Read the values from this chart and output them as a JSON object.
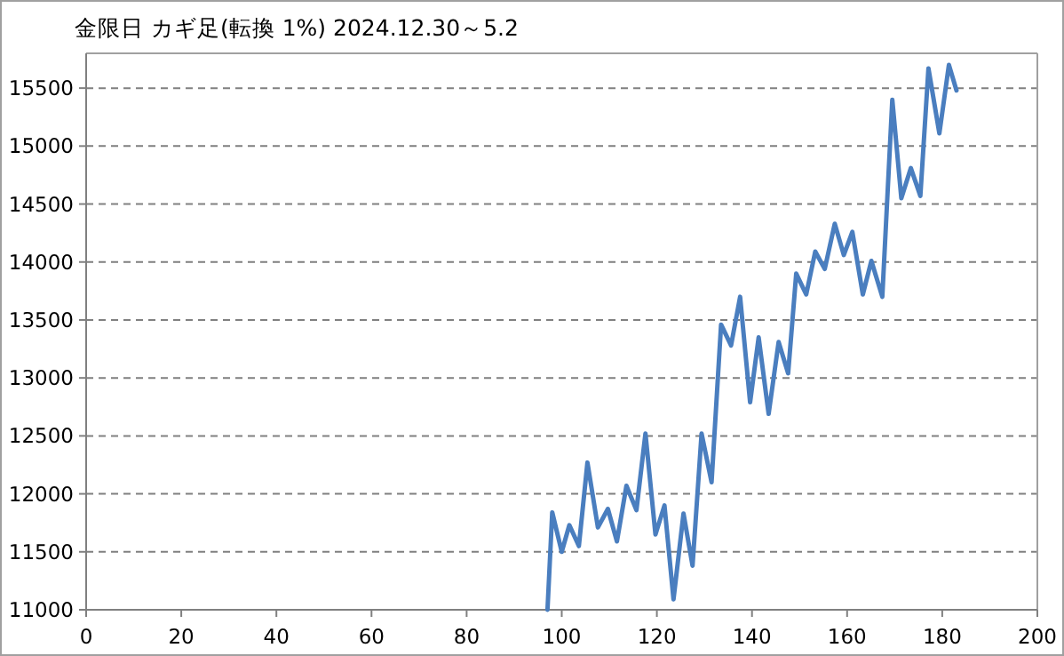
{
  "chart_data": {
    "type": "line",
    "title": "金限日  カギ足(転換 1%)   2024.12.30～5.2",
    "x": [
      97,
      98,
      100,
      101.6,
      103.6,
      105.4,
      107.6,
      109.7,
      111.6,
      113.6,
      115.7,
      117.6,
      119.7,
      121.6,
      123.5,
      125.6,
      127.5,
      129.4,
      131.5,
      133.5,
      135.6,
      137.5,
      139.6,
      141.4,
      143.5,
      145.6,
      147.6,
      149.3,
      151.4,
      153.3,
      155.3,
      157.4,
      159.3,
      161.1,
      163.3,
      165.1,
      167.4,
      169.5,
      171.4,
      173.4,
      175.4,
      177.1,
      179.4,
      181.4,
      183
    ],
    "series": [
      {
        "color": "#4a7ebf",
        "values": [
          11000,
          11840,
          11500,
          11730,
          11550,
          12270,
          11710,
          11870,
          11590,
          12070,
          11860,
          12520,
          11650,
          11900,
          11090,
          11830,
          11380,
          12520,
          12100,
          13460,
          13280,
          13700,
          12790,
          13350,
          12690,
          13310,
          13040,
          13900,
          13720,
          14090,
          13940,
          14330,
          14060,
          14260,
          13720,
          14010,
          13700,
          15400,
          14550,
          14810,
          14570,
          15670,
          15110,
          15700,
          15480
        ]
      }
    ],
    "xlim": [
      0,
      200
    ],
    "xticks": [
      0,
      20,
      40,
      60,
      80,
      100,
      120,
      140,
      160,
      180,
      200
    ],
    "ylim": [
      11000,
      15800
    ],
    "yticks": [
      11000,
      11500,
      12000,
      12500,
      13000,
      13500,
      14000,
      14500,
      15000,
      15500
    ],
    "grid": "y",
    "marker": "none",
    "line_style": "solid"
  }
}
